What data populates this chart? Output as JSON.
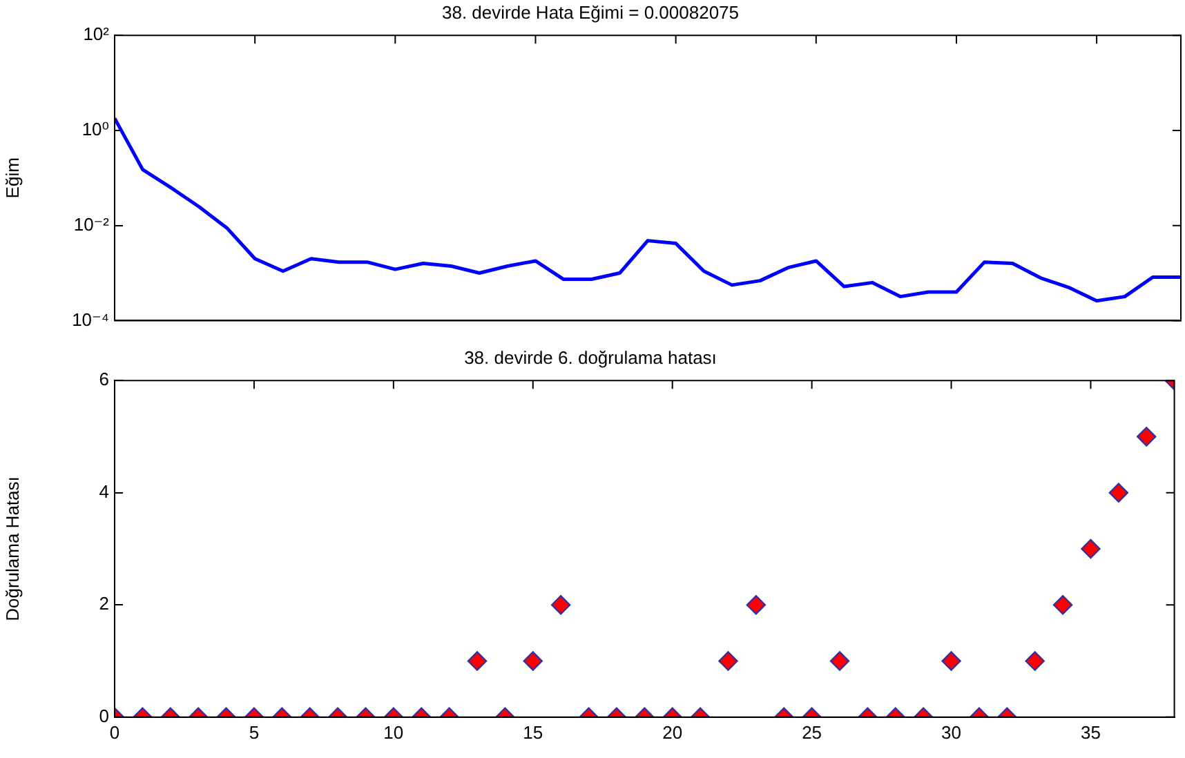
{
  "chart_data": [
    {
      "type": "line",
      "title": "38. devirde Hata Eğimi = 0.00082075",
      "ylabel": "Eğim",
      "log": "y",
      "x": [
        0,
        1,
        2,
        3,
        4,
        5,
        6,
        7,
        8,
        9,
        10,
        11,
        12,
        13,
        14,
        15,
        16,
        17,
        18,
        19,
        20,
        21,
        22,
        23,
        24,
        25,
        26,
        27,
        28,
        29,
        30,
        31,
        32,
        33,
        34,
        35,
        36,
        37,
        38
      ],
      "series": [
        {
          "color": "#0000ff",
          "values": [
            1.8,
            0.15,
            0.063,
            0.025,
            0.0089,
            0.002,
            0.0011,
            0.002,
            0.0017,
            0.0017,
            0.0012,
            0.0016,
            0.0014,
            0.001,
            0.0014,
            0.0018,
            0.00074,
            0.00074,
            0.001,
            0.0048,
            0.0042,
            0.0011,
            0.00056,
            0.00069,
            0.0013,
            0.0018,
            0.00052,
            0.00063,
            0.00032,
            0.0004,
            0.0004,
            0.0017,
            0.0016,
            0.00079,
            0.0005,
            0.00026,
            0.00032,
            0.00082,
            0.00082
          ]
        }
      ],
      "xlim": [
        0,
        38
      ],
      "xticks": [
        0,
        5,
        10,
        15,
        20,
        25,
        30,
        35
      ],
      "ylim": [
        0.0001,
        100
      ],
      "yticks": [
        {
          "value": 0.0001,
          "label": "10⁻⁴"
        },
        {
          "value": 0.01,
          "label": "10⁻²"
        },
        {
          "value": 1,
          "label": "10⁰"
        },
        {
          "value": 100,
          "label": "10²"
        }
      ],
      "tick_labels": "y",
      "grid": false,
      "legend": false
    },
    {
      "type": "scatter",
      "title": "38. devirde 6. doğrulama hatası",
      "ylabel": "Doğrulama Hatası",
      "marker": "diamond",
      "x": [
        0,
        1,
        2,
        3,
        4,
        5,
        6,
        7,
        8,
        9,
        10,
        11,
        12,
        13,
        14,
        15,
        16,
        17,
        18,
        19,
        20,
        21,
        22,
        23,
        24,
        25,
        26,
        27,
        28,
        29,
        30,
        31,
        32,
        33,
        34,
        35,
        36,
        37,
        38
      ],
      "series": [
        {
          "color": "#ff0000",
          "values": [
            0,
            0,
            0,
            0,
            0,
            0,
            0,
            0,
            0,
            0,
            0,
            0,
            0,
            1,
            0,
            1,
            2,
            0,
            0,
            0,
            0,
            0,
            1,
            2,
            0,
            0,
            1,
            0,
            0,
            0,
            1,
            0,
            0,
            1,
            2,
            3,
            4,
            5,
            6
          ]
        }
      ],
      "xlim": [
        0,
        38
      ],
      "xticks": [
        0,
        5,
        10,
        15,
        20,
        25,
        30,
        35
      ],
      "ylim": [
        0,
        6
      ],
      "yticks": [
        0,
        2,
        4,
        6
      ],
      "grid": false,
      "legend": false
    }
  ]
}
